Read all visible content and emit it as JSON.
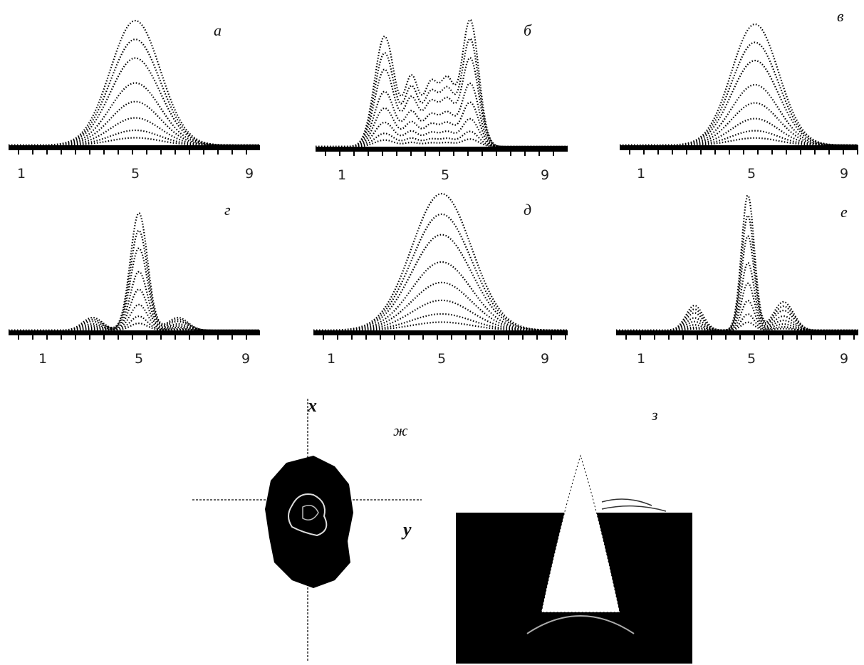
{
  "panels": [
    {
      "label": "а",
      "ticks": [
        1,
        5,
        9
      ]
    },
    {
      "label": "б",
      "ticks": [
        1,
        5,
        9
      ]
    },
    {
      "label": "в",
      "ticks": [
        1,
        5,
        9
      ]
    },
    {
      "label": "г",
      "ticks": [
        1,
        5,
        9
      ]
    },
    {
      "label": "д",
      "ticks": [
        1,
        5,
        9
      ]
    },
    {
      "label": "е",
      "ticks": [
        1,
        5,
        9
      ]
    }
  ],
  "panel_zh": {
    "label": "ж",
    "axis_x": "x",
    "axis_y": "y"
  },
  "panel_z": {
    "label": "з"
  }
}
